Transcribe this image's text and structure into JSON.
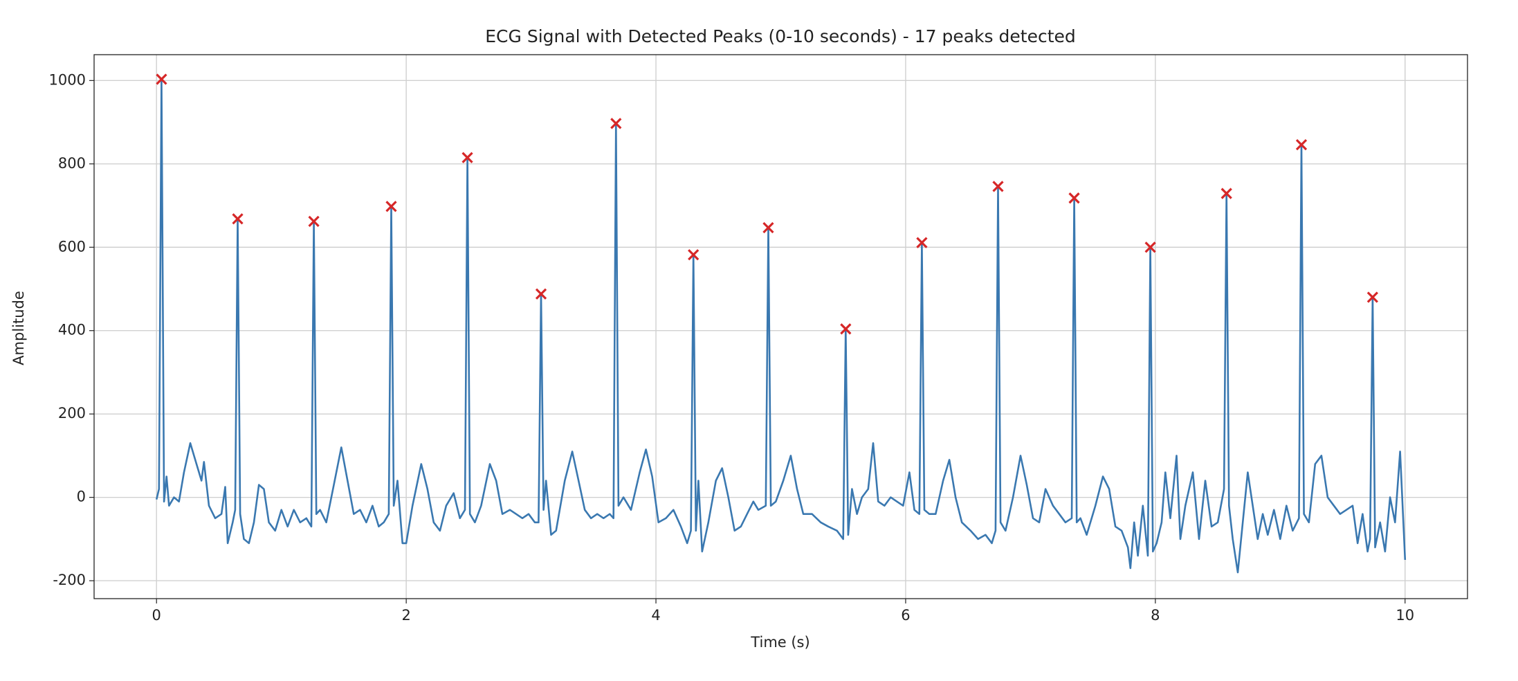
{
  "chart_data": {
    "type": "line",
    "title": "ECG Signal with Detected Peaks (0-10 seconds) - 17 peaks detected",
    "xlabel": "Time (s)",
    "ylabel": "Amplitude",
    "xlim": [
      -0.5,
      10.5
    ],
    "ylim": [
      -243,
      1062
    ],
    "xticks": [
      0,
      2,
      4,
      6,
      8,
      10
    ],
    "yticks": [
      -200,
      0,
      200,
      400,
      600,
      800,
      1000
    ],
    "grid": true,
    "signal": {
      "color": "#3a78b0",
      "x": [
        0.0,
        0.02,
        0.04,
        0.06,
        0.08,
        0.1,
        0.14,
        0.18,
        0.22,
        0.27,
        0.32,
        0.36,
        0.38,
        0.42,
        0.47,
        0.52,
        0.55,
        0.57,
        0.61,
        0.63,
        0.65,
        0.67,
        0.7,
        0.74,
        0.78,
        0.82,
        0.86,
        0.9,
        0.95,
        1.0,
        1.05,
        1.1,
        1.15,
        1.2,
        1.24,
        1.26,
        1.28,
        1.31,
        1.36,
        1.42,
        1.48,
        1.53,
        1.58,
        1.63,
        1.68,
        1.73,
        1.78,
        1.82,
        1.86,
        1.88,
        1.9,
        1.93,
        1.97,
        2.0,
        2.05,
        2.12,
        2.17,
        2.22,
        2.27,
        2.32,
        2.38,
        2.43,
        2.47,
        2.49,
        2.51,
        2.55,
        2.6,
        2.67,
        2.72,
        2.77,
        2.83,
        2.88,
        2.93,
        2.98,
        3.03,
        3.06,
        3.08,
        3.1,
        3.12,
        3.16,
        3.2,
        3.27,
        3.33,
        3.38,
        3.43,
        3.48,
        3.53,
        3.58,
        3.63,
        3.66,
        3.68,
        3.7,
        3.74,
        3.8,
        3.87,
        3.92,
        3.97,
        4.02,
        4.08,
        4.14,
        4.2,
        4.25,
        4.28,
        4.3,
        4.32,
        4.34,
        4.37,
        4.42,
        4.48,
        4.53,
        4.58,
        4.63,
        4.68,
        4.73,
        4.78,
        4.82,
        4.88,
        4.9,
        4.92,
        4.96,
        5.02,
        5.08,
        5.13,
        5.18,
        5.25,
        5.32,
        5.38,
        5.45,
        5.5,
        5.52,
        5.54,
        5.57,
        5.61,
        5.65,
        5.7,
        5.74,
        5.78,
        5.83,
        5.88,
        5.93,
        5.98,
        6.03,
        6.07,
        6.11,
        6.13,
        6.15,
        6.19,
        6.24,
        6.3,
        6.35,
        6.4,
        6.45,
        6.52,
        6.58,
        6.64,
        6.69,
        6.72,
        6.74,
        6.76,
        6.8,
        6.86,
        6.92,
        6.97,
        7.02,
        7.07,
        7.12,
        7.18,
        7.23,
        7.28,
        7.33,
        7.35,
        7.37,
        7.4,
        7.45,
        7.52,
        7.58,
        7.63,
        7.68,
        7.73,
        7.78,
        7.8,
        7.83,
        7.86,
        7.9,
        7.94,
        7.96,
        7.98,
        8.01,
        8.05,
        8.08,
        8.12,
        8.17,
        8.2,
        8.24,
        8.3,
        8.35,
        8.4,
        8.45,
        8.5,
        8.55,
        8.57,
        8.59,
        8.62,
        8.66,
        8.7,
        8.74,
        8.78,
        8.82,
        8.86,
        8.9,
        8.95,
        9.0,
        9.05,
        9.1,
        9.15,
        9.17,
        9.19,
        9.23,
        9.28,
        9.33,
        9.38,
        9.43,
        9.48,
        9.53,
        9.58,
        9.62,
        9.66,
        9.7,
        9.72,
        9.74,
        9.76,
        9.8,
        9.84,
        9.88,
        9.92,
        9.96,
        10.0
      ],
      "values": [
        -5,
        20,
        1003,
        -10,
        50,
        -20,
        0,
        -10,
        60,
        130,
        80,
        40,
        85,
        -20,
        -50,
        -40,
        25,
        -110,
        -60,
        -30,
        668,
        -40,
        -100,
        -110,
        -60,
        30,
        20,
        -60,
        -80,
        -30,
        -70,
        -30,
        -60,
        -50,
        -70,
        662,
        -40,
        -30,
        -60,
        30,
        120,
        40,
        -40,
        -30,
        -60,
        -20,
        -70,
        -60,
        -40,
        698,
        -20,
        40,
        -110,
        -110,
        -20,
        80,
        20,
        -60,
        -80,
        -20,
        10,
        -50,
        -30,
        815,
        -40,
        -60,
        -20,
        80,
        40,
        -40,
        -30,
        -40,
        -50,
        -40,
        -60,
        -60,
        488,
        -30,
        40,
        -90,
        -80,
        40,
        110,
        40,
        -30,
        -50,
        -40,
        -50,
        -40,
        -50,
        897,
        -20,
        0,
        -30,
        60,
        115,
        50,
        -60,
        -50,
        -30,
        -70,
        -110,
        -80,
        582,
        -80,
        40,
        -130,
        -60,
        40,
        70,
        0,
        -80,
        -70,
        -40,
        -10,
        -30,
        -20,
        647,
        -20,
        -10,
        40,
        100,
        20,
        -40,
        -40,
        -60,
        -70,
        -80,
        -100,
        404,
        -90,
        20,
        -40,
        0,
        20,
        130,
        -10,
        -20,
        0,
        -10,
        -20,
        60,
        -30,
        -40,
        611,
        -30,
        -40,
        -40,
        40,
        90,
        0,
        -60,
        -80,
        -100,
        -90,
        -110,
        -80,
        746,
        -60,
        -80,
        0,
        100,
        30,
        -50,
        -60,
        20,
        -20,
        -40,
        -60,
        -50,
        718,
        -60,
        -50,
        -90,
        -20,
        50,
        20,
        -70,
        -80,
        -120,
        -170,
        -60,
        -140,
        -20,
        -140,
        600,
        -130,
        -110,
        -60,
        60,
        -50,
        100,
        -100,
        -20,
        60,
        -100,
        40,
        -70,
        -60,
        20,
        729,
        -20,
        -100,
        -180,
        -60,
        60,
        -20,
        -100,
        -40,
        -90,
        -30,
        -100,
        -20,
        -80,
        -50,
        846,
        -40,
        -60,
        80,
        100,
        0,
        -20,
        -40,
        -30,
        -20,
        -110,
        -40,
        -130,
        -100,
        480,
        -120,
        -60,
        -130,
        0,
        -60,
        110,
        -150
      ]
    },
    "peaks": {
      "color": "#d62728",
      "x": [
        0.04,
        0.65,
        1.26,
        1.88,
        2.49,
        3.08,
        3.68,
        4.3,
        4.9,
        5.52,
        6.13,
        6.74,
        7.35,
        7.96,
        8.57,
        9.17,
        9.74
      ],
      "values": [
        1003,
        668,
        662,
        698,
        815,
        488,
        897,
        582,
        647,
        404,
        611,
        746,
        718,
        600,
        729,
        846,
        480
      ]
    }
  }
}
